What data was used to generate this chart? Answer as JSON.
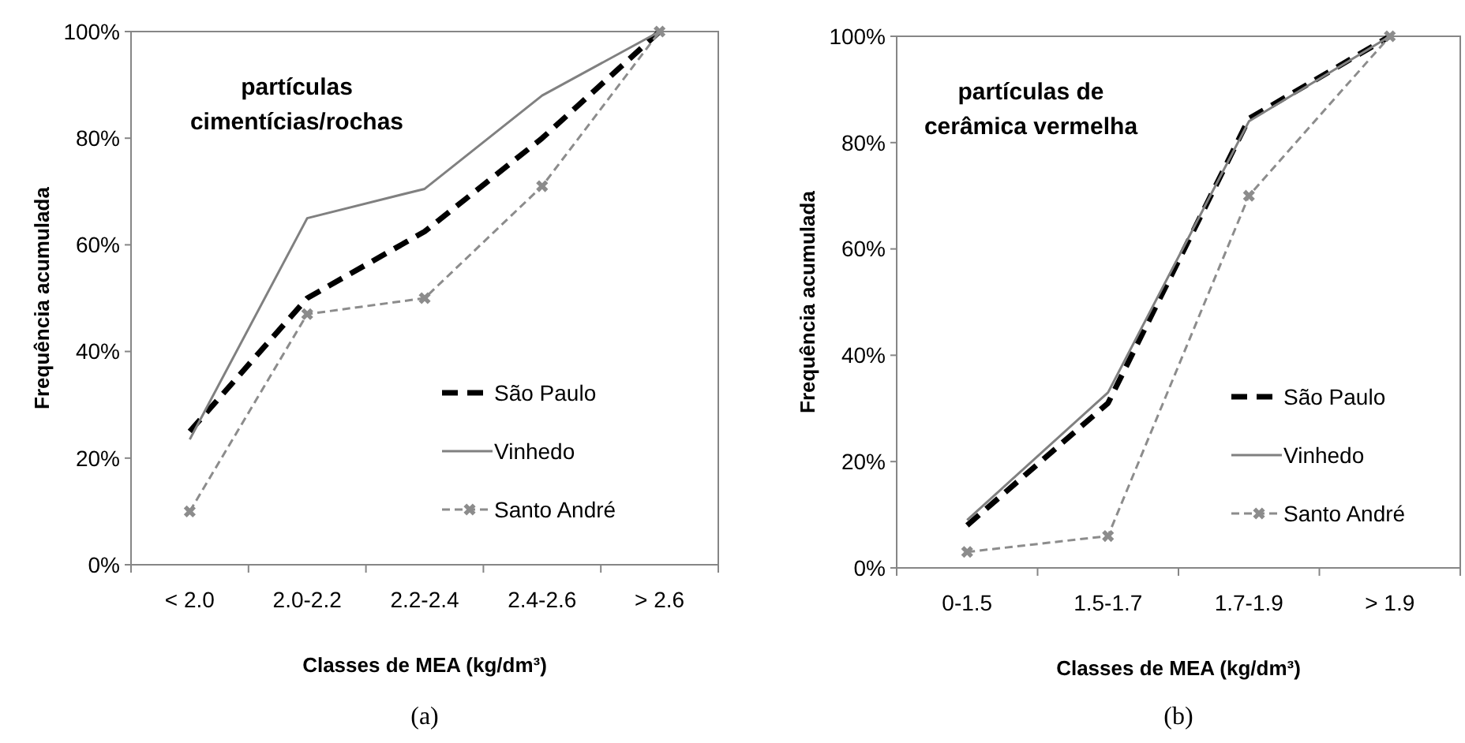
{
  "chart_data": [
    {
      "type": "line",
      "title": "partículas\ncimentícias/rochas",
      "xlabel": "Classes de MEA (kg/dm³)",
      "ylabel": "Frequência acumulada",
      "annotations": [
        "(a)"
      ],
      "categories": [
        "< 2.0",
        "2.0-2.2",
        "2.2-2.4",
        "2.4-2.6",
        "> 2.6"
      ],
      "ylim": [
        0,
        100
      ],
      "yticks": [
        {
          "value": 0,
          "label": "0%"
        },
        {
          "value": 20,
          "label": "20%"
        },
        {
          "value": 40,
          "label": "40%"
        },
        {
          "value": 60,
          "label": "60%"
        },
        {
          "value": 80,
          "label": "80%"
        },
        {
          "value": 100,
          "label": "100%"
        }
      ],
      "grid": false,
      "legend": "right",
      "series": [
        {
          "name": "São Paulo",
          "color": "#000000",
          "line_style": "dashed",
          "marker": "none",
          "values": [
            25,
            50,
            62.5,
            80,
            100
          ]
        },
        {
          "name": "Vinhedo",
          "color": "#808080",
          "line_style": "solid",
          "marker": "none",
          "values": [
            23.5,
            65,
            70.5,
            88,
            100
          ]
        },
        {
          "name": "Santo André",
          "color": "#8c8c8c",
          "line_style": "dashed",
          "marker": "cross",
          "values": [
            10,
            47,
            50,
            71,
            100
          ]
        }
      ]
    },
    {
      "type": "line",
      "title": "partículas de\ncerâmica vermelha",
      "xlabel": "Classes de MEA (kg/dm³)",
      "ylabel": "Frequência acumulada",
      "annotations": [
        "(b)"
      ],
      "categories": [
        "0-1.5",
        "1.5-1.7",
        "1.7-1.9",
        "> 1.9"
      ],
      "ylim": [
        0,
        100
      ],
      "yticks": [
        {
          "value": 0,
          "label": "0%"
        },
        {
          "value": 20,
          "label": "20%"
        },
        {
          "value": 40,
          "label": "40%"
        },
        {
          "value": 60,
          "label": "60%"
        },
        {
          "value": 80,
          "label": "80%"
        },
        {
          "value": 100,
          "label": "100%"
        }
      ],
      "grid": false,
      "legend": "right",
      "series": [
        {
          "name": "São Paulo",
          "color": "#000000",
          "line_style": "dashed",
          "marker": "none",
          "values": [
            8,
            31,
            84.5,
            100
          ]
        },
        {
          "name": "Vinhedo",
          "color": "#808080",
          "line_style": "solid",
          "marker": "none",
          "values": [
            9,
            33,
            84,
            100
          ]
        },
        {
          "name": "Santo André",
          "color": "#8c8c8c",
          "line_style": "dashed",
          "marker": "cross",
          "values": [
            3,
            6,
            70,
            100
          ]
        }
      ]
    }
  ]
}
